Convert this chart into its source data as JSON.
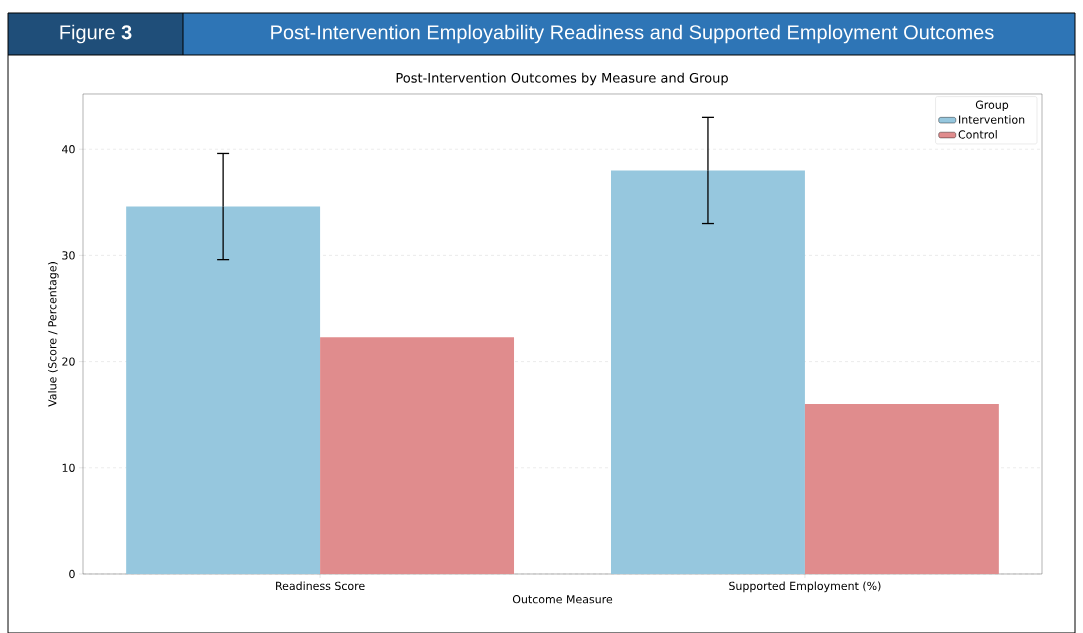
{
  "chart_data": {
    "type": "bar",
    "title": "Post-Intervention Employability Readiness and Supported Employment Outcomes",
    "subtitle": "Post-Intervention Outcomes by Measure and Group",
    "annotations": [
      "Figure **3**"
    ],
    "xlabel": "Outcome Measure",
    "ylabel": "Value (Score / Percentage)",
    "legend_title": "Group",
    "categories": [
      "Readiness Score",
      "Supported Employment (%)"
    ],
    "series": [
      {
        "name": "Intervention",
        "color": "#96c7de",
        "values": [
          34.6,
          38.0
        ],
        "errors": [
          5.0,
          5.0
        ]
      },
      {
        "name": "Control",
        "color": "#e08c8d",
        "values": [
          22.3,
          16.0
        ]
      }
    ],
    "ylim": [
      0,
      45.2
    ],
    "yticks": [
      0,
      10,
      20,
      30,
      40
    ],
    "grid": "y",
    "legend": "top right"
  }
}
